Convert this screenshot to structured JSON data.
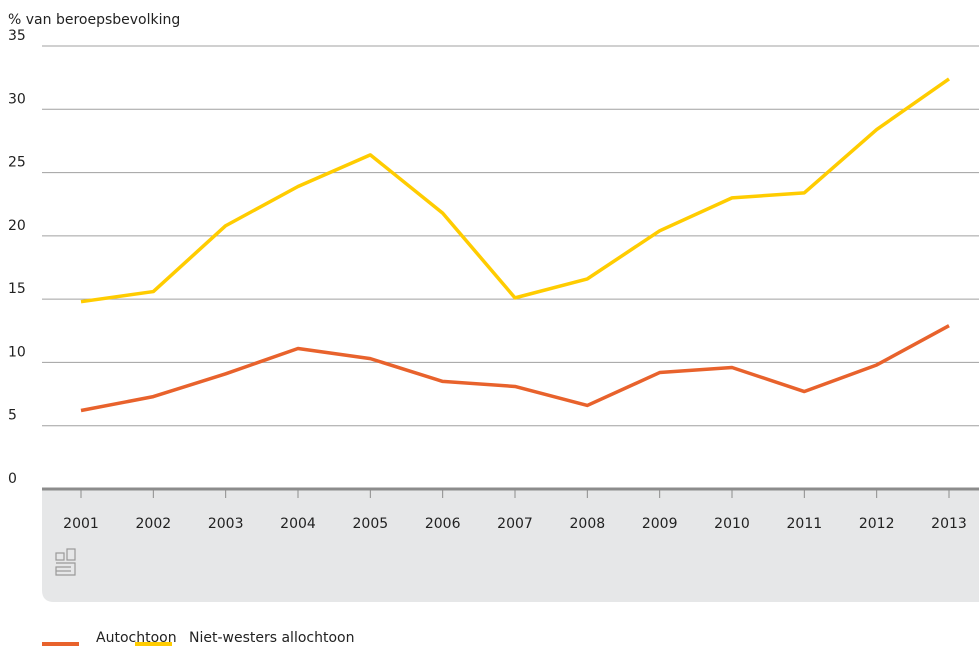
{
  "chart_data": {
    "type": "line",
    "y_label": "% van beroepsbevolking",
    "categories": [
      "2001",
      "2002",
      "2003",
      "2004",
      "2005",
      "2006",
      "2007",
      "2008",
      "2009",
      "2010",
      "2011",
      "2012",
      "2013"
    ],
    "series": [
      {
        "name": "Autochtoon",
        "color": "#e8622c",
        "values": [
          6.2,
          7.3,
          9.1,
          11.1,
          10.3,
          8.5,
          8.1,
          6.6,
          9.2,
          9.6,
          7.7,
          9.8,
          12.9
        ]
      },
      {
        "name": "Niet-westers allochtoon",
        "color": "#ffcc00",
        "values": [
          14.8,
          15.6,
          20.8,
          23.9,
          26.4,
          21.8,
          15.1,
          16.6,
          20.4,
          23.0,
          23.4,
          28.4,
          32.4
        ]
      }
    ],
    "ylim": [
      0,
      35
    ],
    "yticks": [
      0,
      5,
      10,
      15,
      20,
      25,
      30,
      35
    ],
    "grid": true
  }
}
